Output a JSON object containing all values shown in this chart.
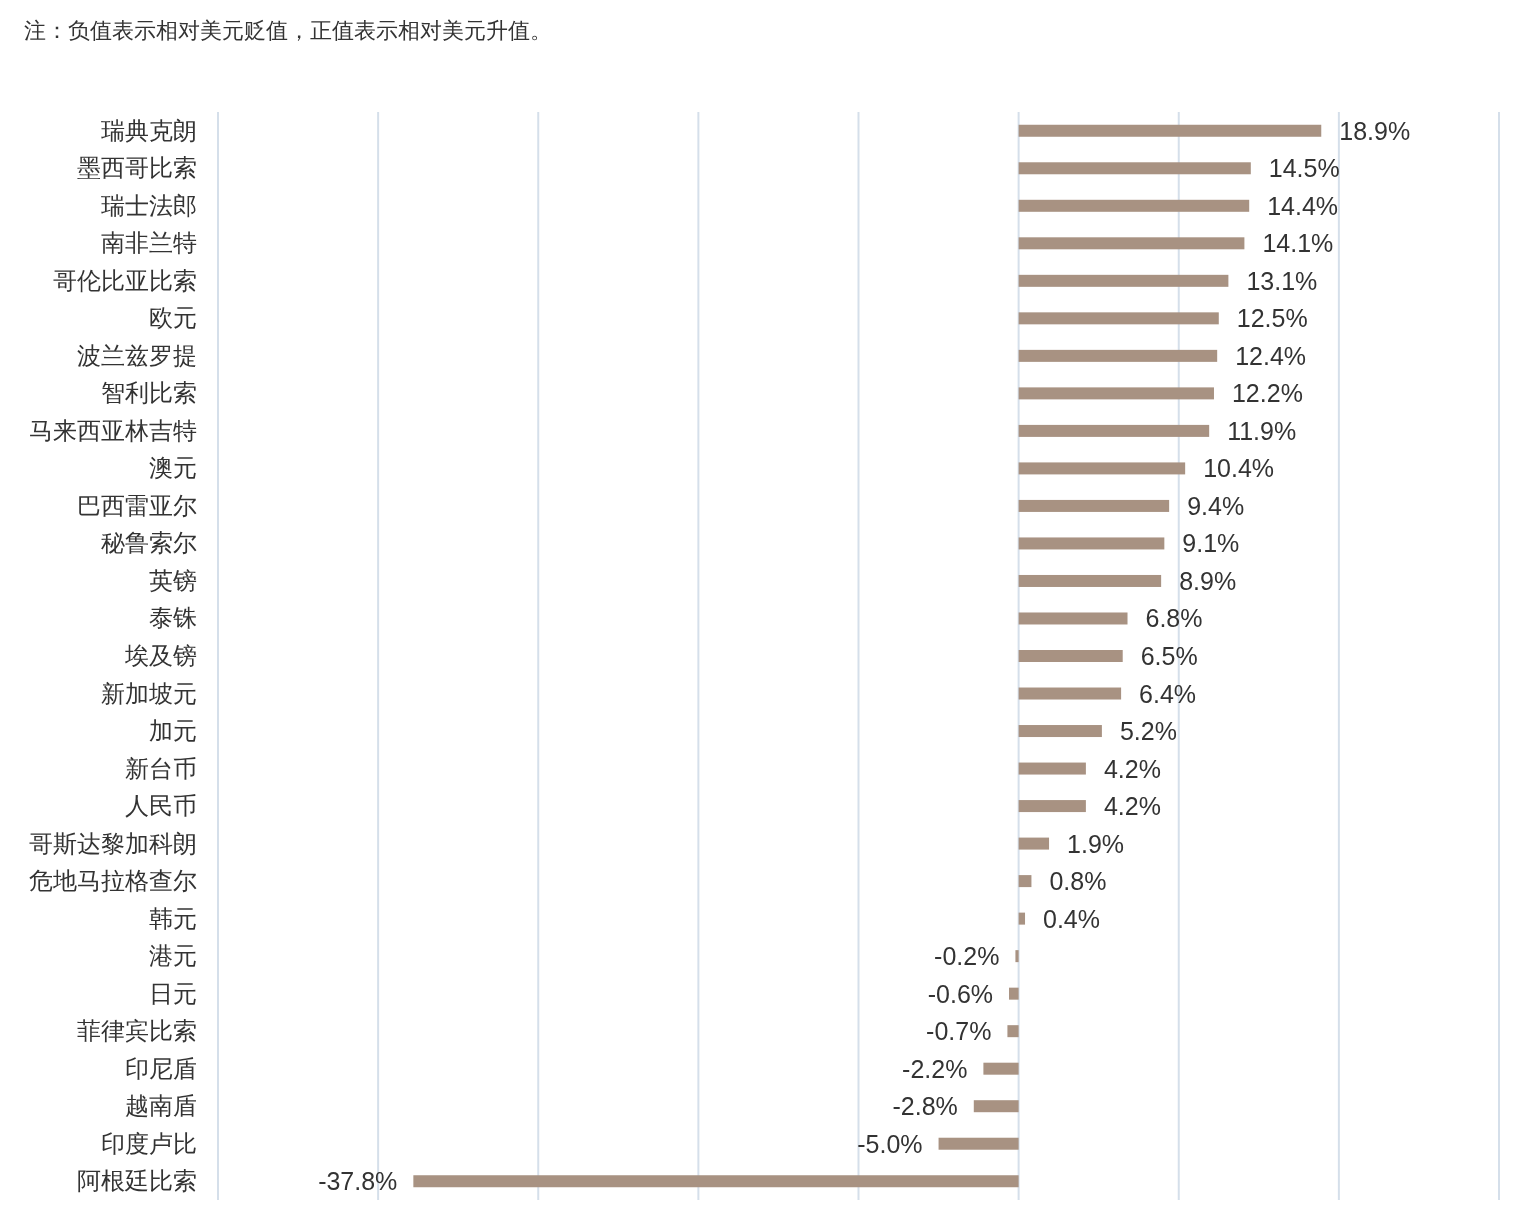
{
  "chart_data": {
    "type": "bar",
    "orientation": "horizontal",
    "annotations": [
      "注：负值表示相对美元贬值，正值表示相对美元升值。"
    ],
    "categories": [
      "瑞典克朗",
      "墨西哥比索",
      "瑞士法郎",
      "南非兰特",
      "哥伦比亚比索",
      "欧元",
      "波兰兹罗提",
      "智利比索",
      "马来西亚林吉特",
      "澳元",
      "巴西雷亚尔",
      "秘鲁索尔",
      "英镑",
      "泰铢",
      "埃及镑",
      "新加坡元",
      "加元",
      "新台币",
      "人民币",
      "哥斯达黎加科朗",
      "危地马拉格查尔",
      "韩元",
      "港元",
      "日元",
      "菲律宾比索",
      "印尼盾",
      "越南盾",
      "印度卢比",
      "阿根廷比索"
    ],
    "values": [
      18.9,
      14.5,
      14.4,
      14.1,
      13.1,
      12.5,
      12.4,
      12.2,
      11.9,
      10.4,
      9.4,
      9.1,
      8.9,
      6.8,
      6.5,
      6.4,
      5.2,
      4.2,
      4.2,
      1.9,
      0.8,
      0.4,
      -0.2,
      -0.6,
      -0.7,
      -2.2,
      -2.8,
      -5.0,
      -37.8
    ],
    "value_labels": [
      "18.9%",
      "14.5%",
      "14.4%",
      "14.1%",
      "13.1%",
      "12.5%",
      "12.4%",
      "12.2%",
      "11.9%",
      "10.4%",
      "9.4%",
      "9.1%",
      "8.9%",
      "6.8%",
      "6.5%",
      "6.4%",
      "5.2%",
      "4.2%",
      "4.2%",
      "1.9%",
      "0.8%",
      "0.4%",
      "-0.2%",
      "-0.6%",
      "-0.7%",
      "-2.2%",
      "-2.8%",
      "-5.0%",
      "-37.8%"
    ],
    "color": "#a89282",
    "xlim": [
      -50,
      30
    ],
    "xticks": [
      {
        "value": -50,
        "label": null
      },
      {
        "value": -40,
        "label": null
      },
      {
        "value": -30,
        "label": null
      },
      {
        "value": -20,
        "label": null
      },
      {
        "value": -10,
        "label": null
      },
      {
        "value": 0,
        "label": null
      },
      {
        "value": 10,
        "label": null
      },
      {
        "value": 20,
        "label": null
      },
      {
        "value": 30,
        "label": null
      }
    ],
    "grid": "x",
    "tick_labels": "y"
  }
}
